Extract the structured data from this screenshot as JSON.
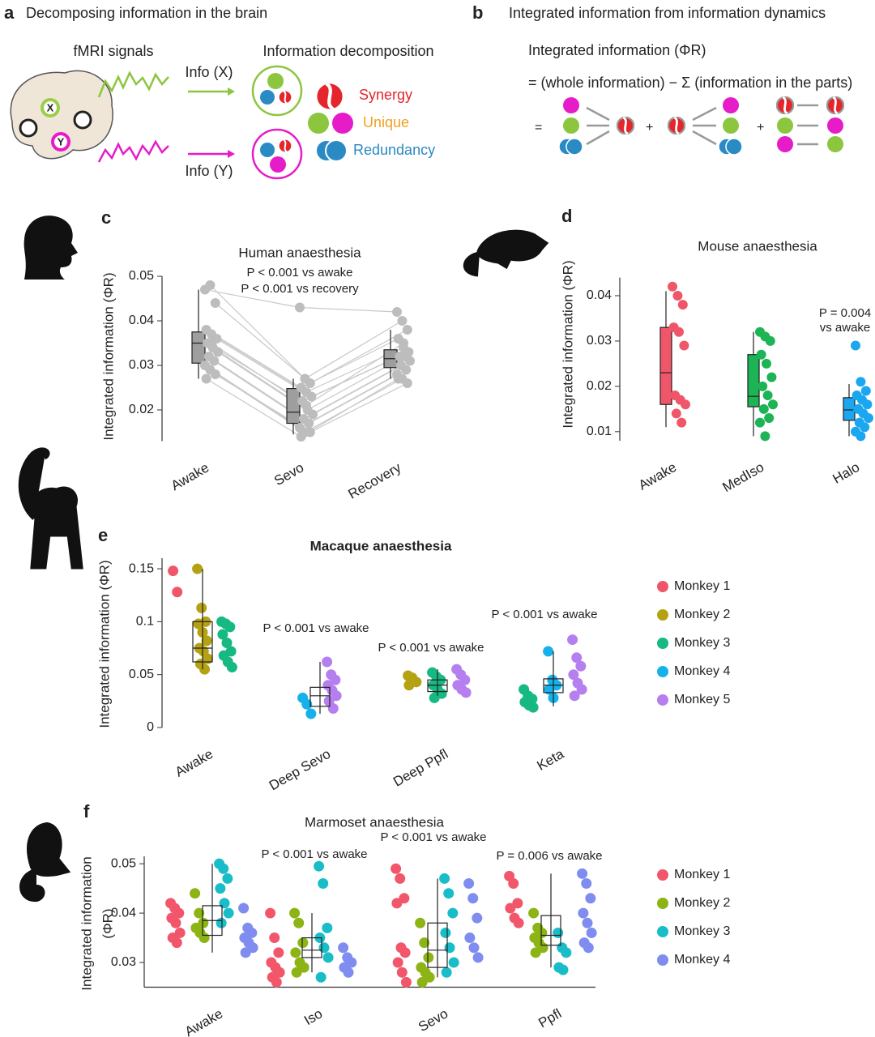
{
  "panel_a": {
    "label": "a",
    "title": "Decomposing information in the brain",
    "signals": "fMRI signals",
    "decomposition": "Information decomposition",
    "info_x": "Info (X)",
    "info_y": "Info (Y)",
    "x": "X",
    "y": "Y",
    "synergy": "Synergy",
    "unique": "Unique",
    "redundancy": "Redundancy"
  },
  "panel_b": {
    "label": "b",
    "title": "Integrated information from information dynamics",
    "heading": "Integrated information (ΦR)",
    "equation": "= (whole information) − Σ (information in the parts)",
    "equals": "=",
    "plus": "+"
  },
  "chart_data": [
    {
      "type": "box",
      "panel": "c",
      "title": "Human anaesthesia",
      "annotations": [
        "P < 0.001 vs awake",
        "P < 0.001 vs recovery"
      ],
      "ylabel": "Integrated information (ΦR)",
      "categories": [
        "Awake",
        "Sevo",
        "Recovery"
      ],
      "paired": true,
      "point_color": "#bdbdbd",
      "box_color": "#9e9e9e",
      "points": [
        [
          0.047,
          0.048,
          0.044,
          0.038,
          0.037,
          0.036,
          0.035,
          0.034,
          0.033,
          0.032,
          0.031,
          0.03,
          0.029,
          0.028,
          0.027,
          0.035
        ],
        [
          0.043,
          0.027,
          0.026,
          0.025,
          0.024,
          0.023,
          0.022,
          0.02,
          0.019,
          0.018,
          0.017,
          0.016,
          0.015,
          0.015,
          0.014,
          0.021
        ],
        [
          0.042,
          0.04,
          0.038,
          0.036,
          0.034,
          0.033,
          0.032,
          0.032,
          0.031,
          0.03,
          0.029,
          0.028,
          0.027,
          0.026,
          0.027,
          0.035
        ]
      ],
      "boxes": [
        {
          "min": 0.027,
          "q1": 0.0305,
          "median": 0.035,
          "q3": 0.0375,
          "max": 0.047
        },
        {
          "min": 0.0145,
          "q1": 0.017,
          "median": 0.0195,
          "q3": 0.0248,
          "max": 0.027
        },
        {
          "min": 0.027,
          "q1": 0.0295,
          "median": 0.0315,
          "q3": 0.0335,
          "max": 0.038
        }
      ],
      "ylim": [
        0.013,
        0.05
      ],
      "yticks": [
        0.02,
        0.03,
        0.04,
        0.05
      ]
    },
    {
      "type": "box",
      "panel": "d",
      "title": "Mouse anaesthesia",
      "annotations": [
        "P = 0.004",
        "vs awake"
      ],
      "ylabel": "Integrated information (ΦR)",
      "categories": [
        "Awake",
        "MedIso",
        "Halo"
      ],
      "colors": [
        "#f0566a",
        "#1cb454",
        "#1aa7f0"
      ],
      "points": [
        [
          0.042,
          0.04,
          0.038,
          0.033,
          0.032,
          0.029,
          0.018,
          0.017,
          0.016,
          0.014,
          0.012
        ],
        [
          0.032,
          0.031,
          0.03,
          0.027,
          0.025,
          0.022,
          0.02,
          0.018,
          0.016,
          0.015,
          0.013,
          0.012,
          0.009
        ],
        [
          0.029,
          0.021,
          0.019,
          0.018,
          0.017,
          0.016,
          0.015,
          0.014,
          0.013,
          0.012,
          0.011,
          0.01,
          0.009
        ]
      ],
      "boxes": [
        {
          "min": 0.011,
          "q1": 0.016,
          "median": 0.023,
          "q3": 0.033,
          "max": 0.041
        },
        {
          "min": 0.009,
          "q1": 0.0155,
          "median": 0.0178,
          "q3": 0.027,
          "max": 0.032
        },
        {
          "min": 0.009,
          "q1": 0.0125,
          "median": 0.0148,
          "q3": 0.0175,
          "max": 0.0205
        }
      ],
      "ylim": [
        0.008,
        0.044
      ],
      "yticks": [
        0.01,
        0.02,
        0.03,
        0.04
      ]
    },
    {
      "type": "box",
      "panel": "e",
      "title": "Macaque anaesthesia",
      "annotations": [
        "P < 0.001 vs awake",
        "P < 0.001 vs awake",
        "P < 0.001 vs awake"
      ],
      "ylabel": "Integrated information (ΦR)",
      "categories": [
        "Awake",
        "Deep Sevo",
        "Deep Ppfl",
        "Keta"
      ],
      "box_color": "none",
      "series": [
        {
          "name": "Monkey 1",
          "color": "#f0566a",
          "values": [
            [
              0.148,
              0.128
            ],
            null,
            null,
            null
          ]
        },
        {
          "name": "Monkey 2",
          "color": "#b5a213",
          "values": [
            [
              0.15,
              0.113,
              0.1,
              0.098,
              0.09,
              0.082,
              0.075,
              0.072,
              0.065,
              0.06,
              0.055
            ],
            null,
            [
              0.049,
              0.047,
              0.043,
              0.04
            ],
            null
          ]
        },
        {
          "name": "Monkey 3",
          "color": "#16b981",
          "values": [
            [
              0.1,
              0.098,
              0.095,
              0.088,
              0.08,
              0.072,
              0.068,
              0.062,
              0.057
            ],
            null,
            [
              0.052,
              0.048,
              0.045,
              0.04,
              0.036,
              0.032,
              0.028
            ],
            [
              0.036,
              0.03,
              0.027,
              0.024,
              0.021,
              0.019
            ]
          ]
        },
        {
          "name": "Monkey 4",
          "color": "#15b1ea",
          "values": [
            null,
            [
              0.028,
              0.022,
              0.013
            ],
            null,
            [
              0.072,
              0.045,
              0.04,
              0.036,
              0.028
            ]
          ]
        },
        {
          "name": "Monkey 5",
          "color": "#b67ff0",
          "values": [
            null,
            [
              0.062,
              0.05,
              0.045,
              0.04,
              0.035,
              0.03,
              0.025,
              0.018
            ],
            [
              0.055,
              0.05,
              0.045,
              0.04,
              0.036,
              0.033
            ],
            [
              0.083,
              0.066,
              0.058,
              0.05,
              0.042,
              0.036,
              0.03
            ]
          ]
        }
      ],
      "boxes": [
        {
          "min": 0.055,
          "q1": 0.062,
          "median": 0.075,
          "q3": 0.1,
          "max": 0.15
        },
        {
          "min": 0.013,
          "q1": 0.02,
          "median": 0.03,
          "q3": 0.038,
          "max": 0.062
        },
        {
          "min": 0.03,
          "q1": 0.034,
          "median": 0.04,
          "q3": 0.045,
          "max": 0.055
        },
        {
          "min": 0.02,
          "q1": 0.033,
          "median": 0.04,
          "q3": 0.046,
          "max": 0.072
        }
      ],
      "ylim": [
        0,
        0.16
      ],
      "yticks": [
        0,
        0.05,
        0.1,
        0.15
      ]
    },
    {
      "type": "box",
      "panel": "f",
      "title": "Marmoset anaesthesia",
      "annotations": [
        "P < 0.001 vs awake",
        "P < 0.001 vs awake",
        "P = 0.006 vs awake"
      ],
      "ylabel": [
        "Integrated information",
        "(ΦR)"
      ],
      "categories": [
        "Awake",
        "Iso",
        "Sevo",
        "Ppfl"
      ],
      "box_color": "none",
      "series": [
        {
          "name": "Monkey 1",
          "color": "#f2566a",
          "values": [
            [
              0.042,
              0.041,
              0.04,
              0.039,
              0.038,
              0.036,
              0.035,
              0.034
            ],
            [
              0.04,
              0.035,
              0.032,
              0.03,
              0.029,
              0.028,
              0.027,
              0.026
            ],
            [
              0.049,
              0.047,
              0.043,
              0.042,
              0.033,
              0.032,
              0.03,
              0.028,
              0.026
            ],
            [
              0.0475,
              0.046,
              0.042,
              0.041,
              0.039,
              0.038
            ]
          ]
        },
        {
          "name": "Monkey 2",
          "color": "#8cb414",
          "values": [
            [
              0.044,
              0.04,
              0.038,
              0.037,
              0.036,
              0.035
            ],
            [
              0.04,
              0.038,
              0.034,
              0.032,
              0.03,
              0.029,
              0.028
            ],
            [
              0.038,
              0.034,
              0.031,
              0.029,
              0.028,
              0.027,
              0.026
            ],
            [
              0.04,
              0.037,
              0.036,
              0.035,
              0.034,
              0.033,
              0.032
            ]
          ]
        },
        {
          "name": "Monkey 3",
          "color": "#19bdc8",
          "values": [
            [
              0.05,
              0.049,
              0.047,
              0.045,
              0.042,
              0.04,
              0.038
            ],
            [
              0.0495,
              0.046,
              0.037,
              0.035,
              0.033,
              0.031,
              0.027
            ],
            [
              0.047,
              0.044,
              0.04,
              0.036,
              0.033,
              0.03,
              0.028
            ],
            [
              0.036,
              0.033,
              0.032,
              0.029,
              0.0285
            ]
          ]
        },
        {
          "name": "Monkey 4",
          "color": "#7f8cf0",
          "values": [
            [
              0.041,
              0.037,
              0.036,
              0.035,
              0.034,
              0.033,
              0.032
            ],
            [
              0.033,
              0.031,
              0.03,
              0.029,
              0.028
            ],
            [
              0.046,
              0.043,
              0.039,
              0.035,
              0.033,
              0.031
            ],
            [
              0.048,
              0.046,
              0.043,
              0.04,
              0.038,
              0.036,
              0.034,
              0.033
            ]
          ]
        }
      ],
      "boxes": [
        {
          "min": 0.032,
          "q1": 0.0355,
          "median": 0.0385,
          "q3": 0.0415,
          "max": 0.05
        },
        {
          "min": 0.028,
          "q1": 0.031,
          "median": 0.0325,
          "q3": 0.035,
          "max": 0.04
        },
        {
          "min": 0.027,
          "q1": 0.029,
          "median": 0.0325,
          "q3": 0.038,
          "max": 0.047
        },
        {
          "min": 0.029,
          "q1": 0.0335,
          "median": 0.0355,
          "q3": 0.0395,
          "max": 0.048
        }
      ],
      "ylim": [
        0.025,
        0.0515
      ],
      "yticks": [
        0.03,
        0.04,
        0.05
      ]
    }
  ]
}
